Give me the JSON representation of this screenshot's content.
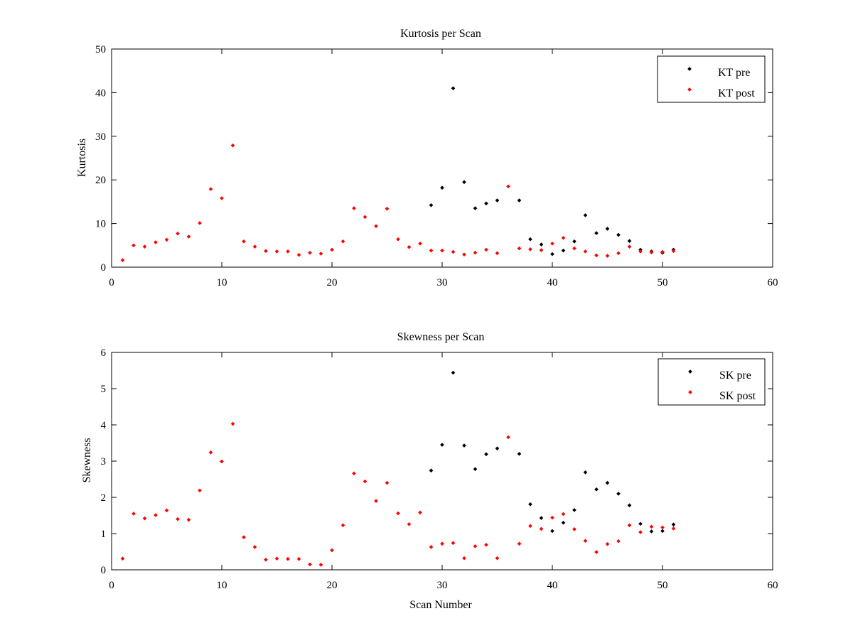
{
  "chart_data": [
    {
      "type": "scatter",
      "title": "Kurtosis per Scan",
      "xlabel": "",
      "ylabel": "Kurtosis",
      "xlim": [
        0,
        60
      ],
      "ylim": [
        0,
        50
      ],
      "xticks": [
        0,
        10,
        20,
        30,
        40,
        50,
        60
      ],
      "yticks": [
        0,
        10,
        20,
        30,
        40,
        50
      ],
      "grid": false,
      "legend_position": "top-right",
      "series": [
        {
          "name": "KT pre",
          "color": "#000000",
          "x": [
            29,
            30,
            31,
            32,
            33,
            34,
            35,
            37,
            38,
            39,
            40,
            41,
            42,
            43,
            44,
            45,
            46,
            47,
            48,
            49,
            50,
            51
          ],
          "y": [
            14.2,
            18.2,
            41.0,
            19.5,
            13.5,
            14.6,
            15.3,
            15.3,
            6.4,
            5.2,
            3.0,
            3.8,
            5.9,
            11.9,
            7.8,
            8.8,
            7.4,
            6.0,
            4.0,
            3.6,
            3.3,
            4.0
          ]
        },
        {
          "name": "KT post",
          "color": "#ff0000",
          "x": [
            1,
            2,
            3,
            4,
            5,
            6,
            7,
            8,
            9,
            10,
            11,
            12,
            13,
            14,
            15,
            16,
            17,
            18,
            19,
            20,
            21,
            22,
            23,
            24,
            25,
            26,
            27,
            28,
            29,
            30,
            31,
            32,
            33,
            34,
            35,
            36,
            37,
            38,
            39,
            40,
            41,
            42,
            43,
            44,
            45,
            46,
            47,
            48,
            49,
            50,
            51
          ],
          "y": [
            1.6,
            5.0,
            4.7,
            5.7,
            6.3,
            7.7,
            7.0,
            10.1,
            17.9,
            15.8,
            27.9,
            5.9,
            4.7,
            3.7,
            3.6,
            3.6,
            2.8,
            3.3,
            3.1,
            4.0,
            5.9,
            13.5,
            11.5,
            9.4,
            13.4,
            6.4,
            4.6,
            5.4,
            3.8,
            3.8,
            3.5,
            2.9,
            3.3,
            4.0,
            3.2,
            18.5,
            4.3,
            4.1,
            3.9,
            5.4,
            6.7,
            4.3,
            3.6,
            2.7,
            2.6,
            3.2,
            4.7,
            3.6,
            3.4,
            3.5,
            3.7
          ]
        }
      ]
    },
    {
      "type": "scatter",
      "title": "Skewness per Scan",
      "xlabel": "Scan Number",
      "ylabel": "Skewness",
      "xlim": [
        0,
        60
      ],
      "ylim": [
        0,
        6
      ],
      "xticks": [
        0,
        10,
        20,
        30,
        40,
        50,
        60
      ],
      "yticks": [
        0,
        1,
        2,
        3,
        4,
        5,
        6
      ],
      "grid": false,
      "legend_position": "top-right",
      "series": [
        {
          "name": "SK pre",
          "color": "#000000",
          "x": [
            29,
            30,
            31,
            32,
            33,
            34,
            35,
            37,
            38,
            39,
            40,
            41,
            42,
            43,
            44,
            45,
            46,
            47,
            48,
            49,
            50,
            51
          ],
          "y": [
            2.74,
            3.45,
            5.44,
            3.43,
            2.78,
            3.19,
            3.35,
            3.2,
            1.81,
            1.43,
            1.07,
            1.3,
            1.65,
            2.69,
            2.22,
            2.4,
            2.1,
            1.78,
            1.27,
            1.06,
            1.07,
            1.25
          ]
        },
        {
          "name": "SK post",
          "color": "#ff0000",
          "x": [
            1,
            2,
            3,
            4,
            5,
            6,
            7,
            8,
            9,
            10,
            11,
            12,
            13,
            14,
            15,
            16,
            17,
            18,
            19,
            20,
            21,
            22,
            23,
            24,
            25,
            26,
            27,
            28,
            29,
            30,
            31,
            32,
            33,
            34,
            35,
            36,
            37,
            38,
            39,
            40,
            41,
            42,
            43,
            44,
            45,
            46,
            47,
            48,
            49,
            50,
            51
          ],
          "y": [
            0.31,
            1.55,
            1.42,
            1.51,
            1.64,
            1.4,
            1.38,
            2.19,
            3.24,
            2.99,
            4.03,
            0.9,
            0.63,
            0.28,
            0.31,
            0.3,
            0.3,
            0.15,
            0.14,
            0.54,
            1.23,
            2.66,
            2.44,
            1.9,
            2.4,
            1.56,
            1.26,
            1.58,
            0.63,
            0.72,
            0.74,
            0.32,
            0.65,
            0.69,
            0.32,
            3.66,
            0.72,
            1.21,
            1.13,
            1.44,
            1.54,
            1.12,
            0.8,
            0.49,
            0.71,
            0.79,
            1.23,
            1.04,
            1.19,
            1.17,
            1.14
          ]
        }
      ]
    }
  ]
}
